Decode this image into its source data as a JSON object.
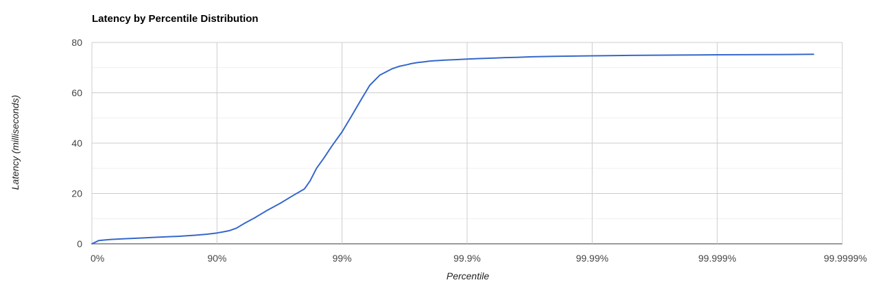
{
  "chart_data": {
    "type": "line",
    "title": "Latency by Percentile Distribution",
    "xlabel": "Percentile",
    "ylabel": "Latency (milliseconds)",
    "x_scale": "log (1 / (1 - percentile))",
    "x_ticks": [
      "0%",
      "90%",
      "99%",
      "99.9%",
      "99.99%",
      "99.999%",
      "99.9999%"
    ],
    "y_ticks": [
      "0",
      "20",
      "40",
      "60",
      "80"
    ],
    "ylim": [
      0,
      80
    ],
    "grid": true,
    "legend": "none",
    "series": [
      {
        "color": "#3366cc",
        "x": [
          "0%",
          "12%",
          "20%",
          "30%",
          "45%",
          "60%",
          "70%",
          "80%",
          "85%",
          "88%",
          "90%",
          "91.2%",
          "92%",
          "93%",
          "94%",
          "95%",
          "96%",
          "96.9%",
          "97.5%",
          "98%",
          "98.2%",
          "98.4%",
          "98.6%",
          "98.8%",
          "99%",
          "99.15%",
          "99.3%",
          "99.4%",
          "99.5%",
          "99.6%",
          "99.65%",
          "99.7%",
          "99.72%",
          "99.75%",
          "99.78%",
          "99.8%",
          "99.85%",
          "99.88%",
          "99.9%",
          "99.92%",
          "99.94%",
          "99.95%",
          "99.96%",
          "99.97%",
          "99.98%",
          "99.99%",
          "99.995%",
          "99.998%",
          "99.999%",
          "99.9997%",
          "99.99983%"
        ],
        "values": [
          0,
          1.3,
          1.5,
          1.75,
          2.0,
          2.3,
          2.6,
          3.0,
          3.4,
          3.8,
          4.3,
          4.8,
          5.2,
          6.2,
          8.2,
          10.3,
          13.2,
          16.2,
          19.0,
          21.8,
          25.0,
          30.0,
          34.0,
          39.0,
          44.5,
          50.3,
          57.5,
          63.0,
          67.0,
          69.5,
          70.5,
          71.2,
          71.6,
          72.0,
          72.3,
          72.6,
          73.0,
          73.2,
          73.4,
          73.6,
          73.8,
          74.0,
          74.1,
          74.3,
          74.5,
          74.7,
          74.85,
          75.0,
          75.1,
          75.2,
          75.3
        ]
      }
    ]
  }
}
